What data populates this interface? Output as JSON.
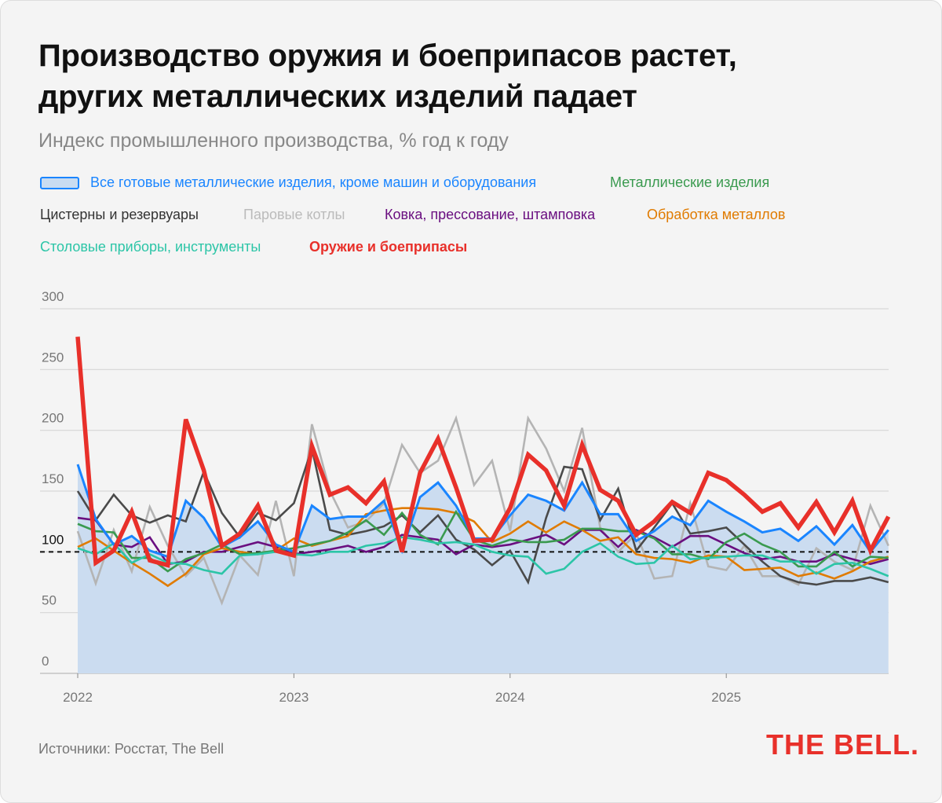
{
  "title_line1": "Производство оружия и боеприпасов растет,",
  "title_line2": "других металлических изделий падает",
  "subtitle": "Индекс промышленного производства, % год к году",
  "source": "Источники: Росстат, The Bell",
  "logo": "THE BELL.",
  "chart_data": {
    "type": "line",
    "title": "Производство оружия и боеприпасов растет, других металлических изделий падает",
    "ylabel": "Индекс промышленного производства, % год к году",
    "ylim": [
      0,
      300
    ],
    "yticks": [
      "0",
      "50",
      "100",
      "150",
      "200",
      "250",
      "300"
    ],
    "xticks": [
      {
        "label": "2022",
        "index": 0
      },
      {
        "label": "2023",
        "index": 12
      },
      {
        "label": "2024",
        "index": 24
      },
      {
        "label": "2025",
        "index": 36
      }
    ],
    "x_start": "2022-01",
    "x_end": "2025-10",
    "reference_line": 100,
    "series": [
      {
        "name": "Все готовые металлические изделия, кроме машин и оборудования",
        "color": "#1a85ff",
        "area": true,
        "values": [
          172,
          127,
          106,
          113,
          101,
          96,
          142,
          128,
          104,
          112,
          125,
          106,
          100,
          138,
          127,
          129,
          129,
          142,
          101,
          145,
          157,
          138,
          111,
          111,
          130,
          147,
          142,
          134,
          157,
          131,
          131,
          109,
          117,
          129,
          122,
          142,
          133,
          125,
          116,
          119,
          109,
          121,
          106,
          122,
          100,
          118
        ]
      },
      {
        "name": "Металлические изделия",
        "color": "#3a9a4f",
        "values": [
          123,
          117,
          116,
          95,
          95,
          84,
          94,
          99,
          106,
          98,
          99,
          101,
          103,
          106,
          109,
          116,
          126,
          114,
          132,
          114,
          106,
          133,
          110,
          105,
          110,
          108,
          108,
          110,
          119,
          119,
          117,
          117,
          111,
          98,
          98,
          94,
          108,
          115,
          106,
          100,
          88,
          88,
          100,
          88,
          96,
          95
        ]
      },
      {
        "name": "Цистерны и резервуары",
        "color": "#4a4a4a",
        "values": [
          150,
          126,
          147,
          130,
          124,
          130,
          125,
          166,
          132,
          112,
          132,
          126,
          140,
          185,
          118,
          114,
          117,
          121,
          130,
          116,
          130,
          110,
          102,
          89,
          101,
          75,
          128,
          170,
          168,
          126,
          152,
          101,
          120,
          140,
          115,
          117,
          120,
          106,
          92,
          80,
          75,
          73,
          76,
          76,
          79,
          75
        ]
      },
      {
        "name": "Паровые котлы",
        "color": "#b4b4b4",
        "values": [
          117,
          74,
          118,
          84,
          137,
          105,
          80,
          95,
          58,
          97,
          81,
          142,
          80,
          205,
          150,
          120,
          125,
          140,
          188,
          165,
          175,
          210,
          155,
          175,
          117,
          210,
          185,
          150,
          202,
          120,
          100,
          115,
          78,
          80,
          140,
          88,
          85,
          105,
          80,
          80,
          73,
          103,
          92,
          85,
          138,
          105
        ]
      },
      {
        "name": "Ковка, прессование, штамповка",
        "color": "#6a0f80",
        "values": [
          128,
          126,
          106,
          104,
          112,
          90,
          92,
          100,
          100,
          104,
          108,
          104,
          98,
          100,
          102,
          105,
          100,
          104,
          114,
          112,
          110,
          98,
          106,
          104,
          106,
          110,
          114,
          106,
          118,
          118,
          104,
          118,
          112,
          104,
          113,
          113,
          106,
          99,
          94,
          96,
          92,
          92,
          98,
          94,
          90,
          94
        ]
      },
      {
        "name": "Обработка металлов",
        "color": "#e07b00",
        "values": [
          104,
          111,
          101,
          91,
          82,
          72,
          82,
          98,
          103,
          100,
          98,
          101,
          111,
          105,
          109,
          113,
          131,
          134,
          136,
          136,
          135,
          132,
          125,
          108,
          115,
          125,
          116,
          125,
          118,
          109,
          112,
          98,
          95,
          94,
          91,
          97,
          96,
          85,
          86,
          87,
          80,
          83,
          78,
          84,
          92,
          96
        ]
      },
      {
        "name": "Столовые приборы, инструменты",
        "color": "#2cc5a7",
        "values": [
          103,
          98,
          107,
          91,
          98,
          91,
          90,
          85,
          82,
          97,
          98,
          100,
          98,
          97,
          100,
          100,
          105,
          107,
          112,
          110,
          107,
          108,
          106,
          100,
          97,
          96,
          82,
          86,
          100,
          107,
          96,
          90,
          91,
          105,
          94,
          95,
          96,
          97,
          97,
          92,
          92,
          82,
          90,
          91,
          86,
          80
        ]
      },
      {
        "name": "Оружие и боеприпасы",
        "color": "#e8302a",
        "bold": true,
        "values": [
          277,
          91,
          101,
          133,
          93,
          89,
          209,
          167,
          105,
          115,
          138,
          101,
          97,
          187,
          147,
          153,
          140,
          158,
          100,
          165,
          193,
          153,
          109,
          110,
          136,
          180,
          167,
          138,
          188,
          151,
          142,
          114,
          125,
          141,
          132,
          165,
          159,
          147,
          133,
          140,
          120,
          141,
          116,
          142,
          101,
          129
        ]
      }
    ]
  }
}
